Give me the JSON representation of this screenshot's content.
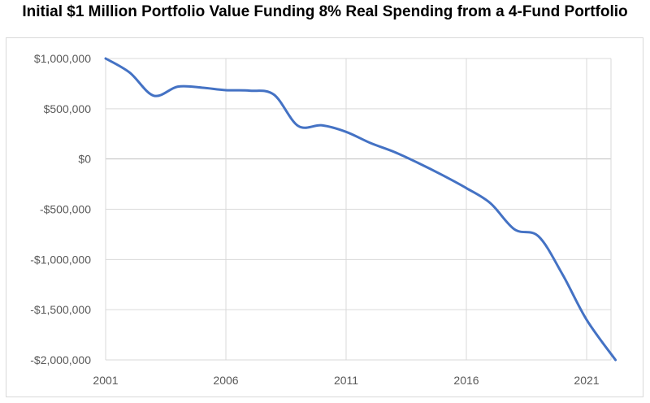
{
  "chart_data": {
    "type": "line",
    "title": "Initial $1 Million Portfolio Value Funding 8% Real Spending from a 4-Fund Portfolio",
    "xlabel": "",
    "ylabel": "",
    "xlim": [
      2001,
      2022.2
    ],
    "ylim": [
      -2000000,
      1000000
    ],
    "grid": true,
    "legend": "none",
    "x_ticks": [
      2001,
      2006,
      2011,
      2016,
      2021
    ],
    "x_tick_labels": [
      "2001",
      "2006",
      "2011",
      "2016",
      "2021"
    ],
    "y_ticks": [
      1000000,
      500000,
      0,
      -500000,
      -1000000,
      -1500000,
      -2000000
    ],
    "y_tick_labels": [
      "$1,000,000",
      "$500,000",
      "$0",
      "-$500,000",
      "-$1,000,000",
      "-$1,500,000",
      "-$2,000,000"
    ],
    "series": [
      {
        "name": "Portfolio Value",
        "color": "#4472c4",
        "x": [
          2001,
          2002,
          2003,
          2004,
          2005,
          2006,
          2007,
          2008,
          2009,
          2010,
          2011,
          2012,
          2013,
          2014,
          2015,
          2016,
          2017,
          2018,
          2019,
          2020,
          2021,
          2022.2
        ],
        "values": [
          1000000,
          860000,
          630000,
          720000,
          710000,
          685000,
          680000,
          640000,
          330000,
          335000,
          270000,
          160000,
          70000,
          -40000,
          -160000,
          -290000,
          -440000,
          -700000,
          -770000,
          -1150000,
          -1600000,
          -2000000
        ]
      }
    ]
  }
}
